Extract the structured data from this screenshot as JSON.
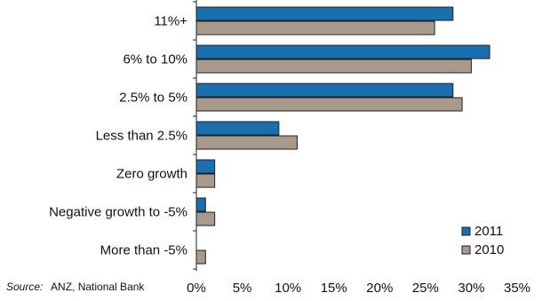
{
  "chart_data": {
    "type": "bar",
    "orientation": "horizontal",
    "title": "",
    "xlabel": "",
    "ylabel": "",
    "categories": [
      "11%+",
      "6% to 10%",
      "2.5% to 5%",
      "Less than 2.5%",
      "Zero growth",
      "Negative growth to -5%",
      "More than -5%"
    ],
    "series": [
      {
        "name": "2011",
        "color": "#1a6fae",
        "values": [
          28,
          32,
          28,
          9,
          2,
          1,
          0
        ]
      },
      {
        "name": "2010",
        "color": "#a89a8d",
        "values": [
          26,
          30,
          29,
          11,
          2,
          2,
          1
        ]
      }
    ],
    "xlim": [
      0,
      35
    ],
    "xticks": [
      "0%",
      "5%",
      "10%",
      "15%",
      "20%",
      "25%",
      "30%",
      "35%"
    ],
    "grid": false,
    "legend_position": "bottom-right",
    "source": {
      "prefix": "Source:",
      "text": "ANZ, National Bank"
    }
  }
}
